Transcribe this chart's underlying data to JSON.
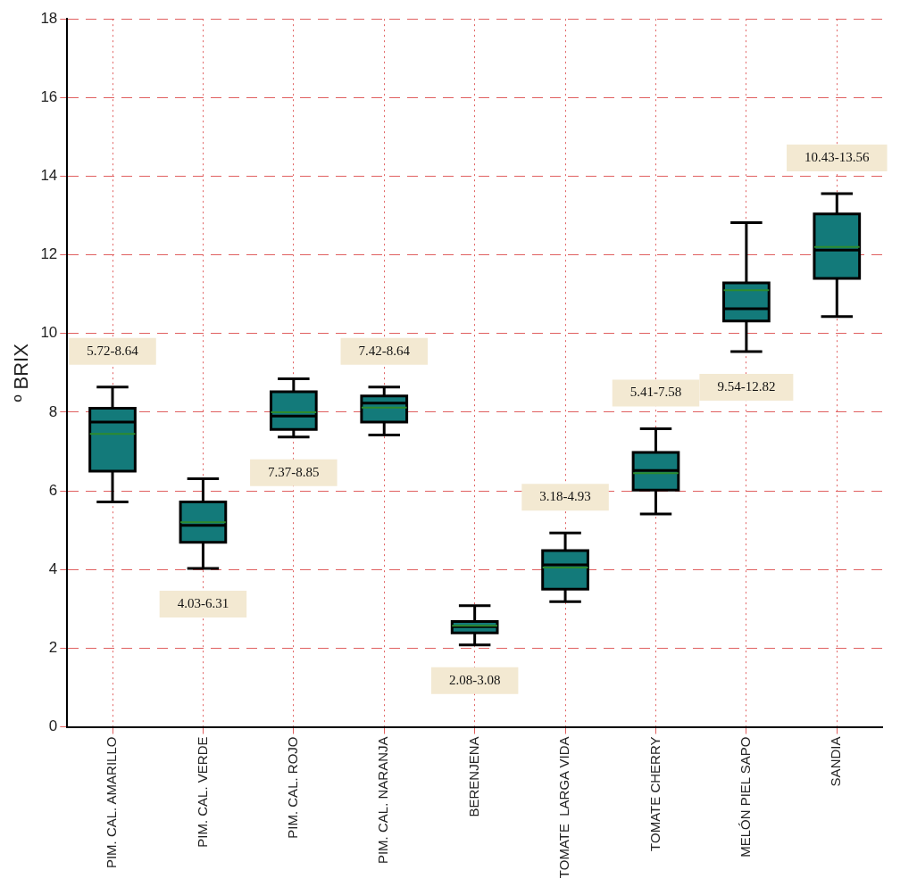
{
  "chart_data": {
    "type": "box",
    "ylabel": "º BRIX",
    "categories": [
      "PIM. CAL. AMARILLO",
      "PIM. CAL. VERDE",
      "PIM. CAL. ROJO",
      "PIM. CAL. NARANJA",
      "BERENJENA",
      "TOMATE  LARGA VIDA",
      "TOMATE CHERRY",
      "MELÓN PIEL SAPO",
      "SANDIA"
    ],
    "color": "#137a7a",
    "boxes": [
      {
        "low": 5.72,
        "q1": 6.5,
        "median": 7.75,
        "q3": 8.1,
        "high": 8.64,
        "mean": 7.45
      },
      {
        "low": 4.03,
        "q1": 4.69,
        "median": 5.12,
        "q3": 5.72,
        "high": 6.31,
        "mean": 5.2
      },
      {
        "low": 7.37,
        "q1": 7.56,
        "median": 7.9,
        "q3": 8.52,
        "high": 8.85,
        "mean": 8.0
      },
      {
        "low": 7.42,
        "q1": 7.75,
        "median": 8.23,
        "q3": 8.41,
        "high": 8.64,
        "mean": 8.12
      },
      {
        "low": 2.08,
        "q1": 2.39,
        "median": 2.55,
        "q3": 2.68,
        "high": 3.08,
        "mean": 2.57
      },
      {
        "low": 3.18,
        "q1": 3.5,
        "median": 4.12,
        "q3": 4.48,
        "high": 4.93,
        "mean": 4.05
      },
      {
        "low": 5.41,
        "q1": 6.02,
        "median": 6.52,
        "q3": 6.98,
        "high": 7.58,
        "mean": 6.45
      },
      {
        "low": 9.54,
        "q1": 10.32,
        "median": 10.63,
        "q3": 11.29,
        "high": 12.82,
        "mean": 11.1
      },
      {
        "low": 10.43,
        "q1": 11.4,
        "median": 12.12,
        "q3": 13.04,
        "high": 13.56,
        "mean": 12.2
      }
    ],
    "ylim": [
      0,
      18
    ],
    "yticks": [
      0,
      2,
      4,
      6,
      8,
      10,
      12,
      14,
      16,
      18
    ],
    "grid": true,
    "legend": false,
    "annotations": [
      {
        "text": "5.72-8.64",
        "x": "PIM. CAL. AMARILLO",
        "y": 8.64
      },
      {
        "text": "4.03-6.31",
        "x": "PIM. CAL. VERDE",
        "y": 4.03
      },
      {
        "text": "7.37-8.85",
        "x": "PIM. CAL. ROJO",
        "y": 7.37
      },
      {
        "text": "7.42-8.64",
        "x": "PIM. CAL. NARANJA",
        "y": 8.64
      },
      {
        "text": "2.08-3.08",
        "x": "BERENJENA",
        "y": 2.08
      },
      {
        "text": "3.18-4.93",
        "x": "TOMATE  LARGA VIDA",
        "y": 4.93
      },
      {
        "text": "5.41-7.58",
        "x": "TOMATE CHERRY",
        "y": 7.58
      },
      {
        "text": "9.54-12.82",
        "x": "MELÓN PIEL SAPO",
        "y": 9.54
      },
      {
        "text": "10.43-13.56",
        "x": "SANDIA",
        "y": 13.56
      }
    ]
  }
}
